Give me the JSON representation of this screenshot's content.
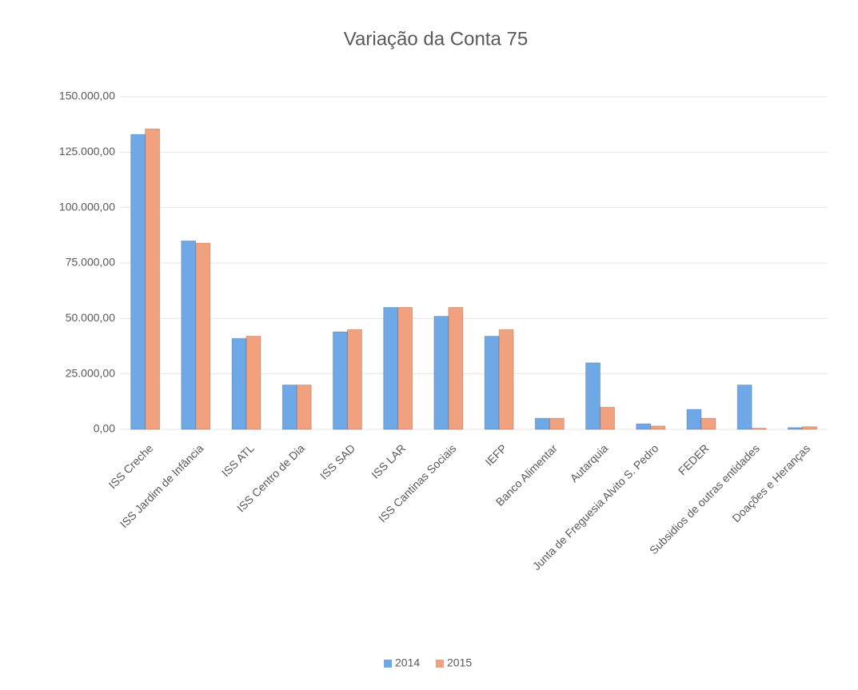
{
  "chart_data": {
    "type": "bar",
    "title": "Variação da Conta 75",
    "categories": [
      "ISS Creche",
      "ISS Jardim de Infância",
      "ISS ATL",
      "ISS Centro de Dia",
      "ISS SAD",
      "ISS LAR",
      "ISS Cantinas Sociais",
      "IEFP",
      "Banco Alimentar",
      "Autarquia",
      "Junta de Freguesia Alvito S. Pedro",
      "FEDER",
      "Subsidios de outras entidades",
      "Doações e Heranças"
    ],
    "series": [
      {
        "name": "2014",
        "color": "#6fa8e6",
        "values": [
          133000,
          85000,
          41000,
          20000,
          44000,
          55000,
          51000,
          42000,
          5000,
          30000,
          2500,
          9000,
          20000,
          800
        ]
      },
      {
        "name": "2015",
        "color": "#f2a17f",
        "values": [
          135500,
          84000,
          42000,
          20000,
          45000,
          55000,
          55000,
          45000,
          5000,
          10000,
          1500,
          5000,
          500,
          1200
        ]
      }
    ],
    "ylim": [
      0,
      150000
    ],
    "yticks": [
      {
        "value": 0,
        "label": "0,00"
      },
      {
        "value": 25000,
        "label": "25.000,00"
      },
      {
        "value": 50000,
        "label": "50.000,00"
      },
      {
        "value": 75000,
        "label": "75.000,00"
      },
      {
        "value": 100000,
        "label": "100.000,00"
      },
      {
        "value": 125000,
        "label": "125.000,00"
      },
      {
        "value": 150000,
        "label": "150.000,00"
      }
    ],
    "grid": true,
    "legend": "bottom"
  }
}
